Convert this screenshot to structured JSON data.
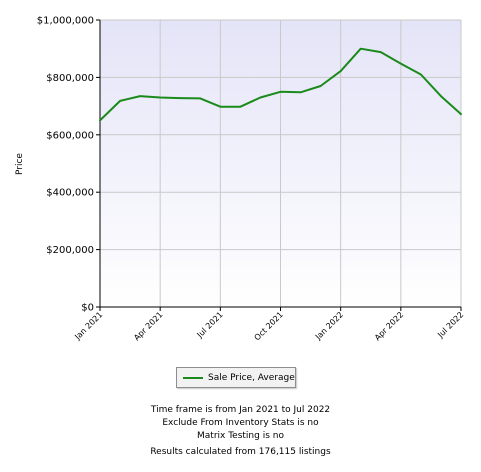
{
  "chart_data": {
    "type": "line",
    "title": "",
    "xlabel": "",
    "ylabel": "Price",
    "x_tick_labels": [
      "Jan 2021",
      "Apr 2021",
      "Jul 2021",
      "Oct 2021",
      "Jan 2022",
      "Apr 2022",
      "Jul 2022"
    ],
    "y_tick_labels": [
      "$0",
      "$200,000",
      "$400,000",
      "$600,000",
      "$800,000",
      "$1,000,000"
    ],
    "y_ticks": [
      0,
      200000,
      400000,
      600000,
      800000,
      1000000
    ],
    "ylim": [
      0,
      1000000
    ],
    "grid": true,
    "legend_placement": "bottom-center",
    "x": [
      "2021-01",
      "2021-02",
      "2021-03",
      "2021-04",
      "2021-05",
      "2021-06",
      "2021-07",
      "2021-08",
      "2021-09",
      "2021-10",
      "2021-11",
      "2021-12",
      "2022-01",
      "2022-02",
      "2022-03",
      "2022-04",
      "2022-05",
      "2022-06",
      "2022-07"
    ],
    "series": [
      {
        "name": "Sale Price, Average",
        "color": "#1a8a1a",
        "values": [
          650000,
          718000,
          735000,
          730000,
          728000,
          727000,
          698000,
          698000,
          730000,
          750000,
          748000,
          770000,
          822000,
          900000,
          888000,
          848000,
          810000,
          735000,
          672000
        ]
      }
    ]
  },
  "colors": {
    "plot_background_top": "#e4e4f8",
    "plot_background_bottom": "#ffffff",
    "gridline": "#c9c9c9",
    "axis": "#000000",
    "line": "#1a8a1a"
  },
  "legend": {
    "label": "Sale Price, Average"
  },
  "footnotes": {
    "time_frame": "Time frame is from Jan 2021 to Jul 2022",
    "exclude": "Exclude From Inventory Stats is no",
    "matrix": "Matrix Testing is no",
    "results": "Results calculated from 176,115 listings"
  }
}
